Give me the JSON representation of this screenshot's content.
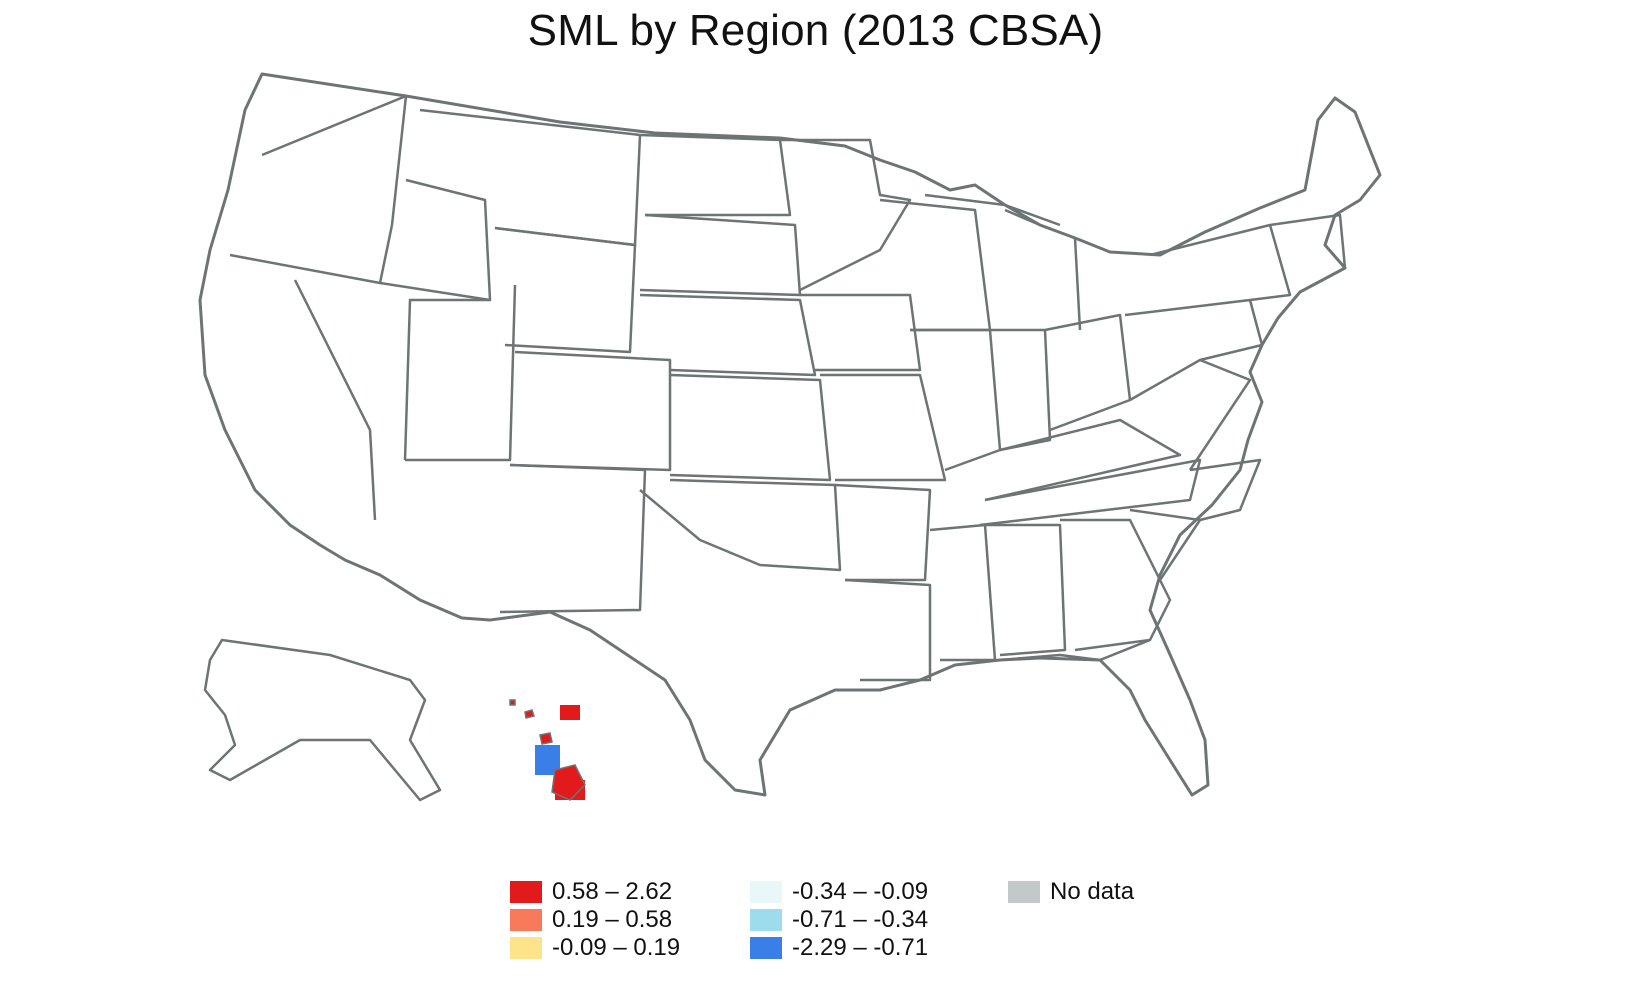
{
  "title": "SML by Region (2013 CBSA)",
  "legend": {
    "items": [
      {
        "label": "0.58 – 2.62",
        "color": "#e31a1c"
      },
      {
        "label": "0.19 – 0.58",
        "color": "#f97a5a"
      },
      {
        "label": "-0.09 – 0.19",
        "color": "#fde38a"
      },
      {
        "label": "-0.34 – -0.09",
        "color": "#e8f8f8"
      },
      {
        "label": "-0.71 – -0.34",
        "color": "#9ddcec"
      },
      {
        "label": "-2.29 – -0.71",
        "color": "#3a7fe8"
      },
      {
        "label": "No data",
        "color": "#c3c9c9"
      }
    ]
  },
  "map": {
    "border_color": "#6d7474",
    "land_color": "#ffffff"
  }
}
